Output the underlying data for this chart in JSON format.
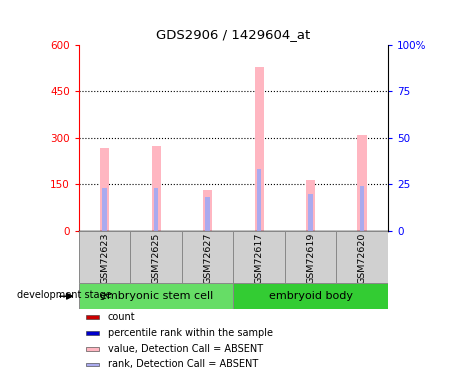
{
  "title": "GDS2906 / 1429604_at",
  "samples": [
    "GSM72623",
    "GSM72625",
    "GSM72627",
    "GSM72617",
    "GSM72619",
    "GSM72620"
  ],
  "groups": [
    {
      "label": "embryonic stem cell",
      "indices": [
        0,
        1,
        2
      ],
      "color": "#66DD66"
    },
    {
      "label": "embryoid body",
      "indices": [
        3,
        4,
        5
      ],
      "color": "#33CC33"
    }
  ],
  "bar_values": [
    268,
    272,
    132,
    528,
    163,
    308
  ],
  "rank_values": [
    138,
    138,
    108,
    200,
    118,
    143
  ],
  "ylim_left": [
    0,
    600
  ],
  "ylim_right": [
    0,
    100
  ],
  "yticks_left": [
    0,
    150,
    300,
    450,
    600
  ],
  "yticks_right": [
    0,
    25,
    50,
    75,
    100
  ],
  "yticklabels_left": [
    "0",
    "150",
    "300",
    "450",
    "600"
  ],
  "yticklabels_right": [
    "0",
    "25",
    "50",
    "75",
    "100%"
  ],
  "bar_color_absent": "#FFB6C1",
  "rank_color_absent": "#AAAAEE",
  "group_label": "development stage",
  "legend_items": [
    {
      "color": "#CC0000",
      "label": "count"
    },
    {
      "color": "#0000CC",
      "label": "percentile rank within the sample"
    },
    {
      "color": "#FFB6C1",
      "label": "value, Detection Call = ABSENT"
    },
    {
      "color": "#AAAAEE",
      "label": "rank, Detection Call = ABSENT"
    }
  ],
  "background_color": "#FFFFFF"
}
